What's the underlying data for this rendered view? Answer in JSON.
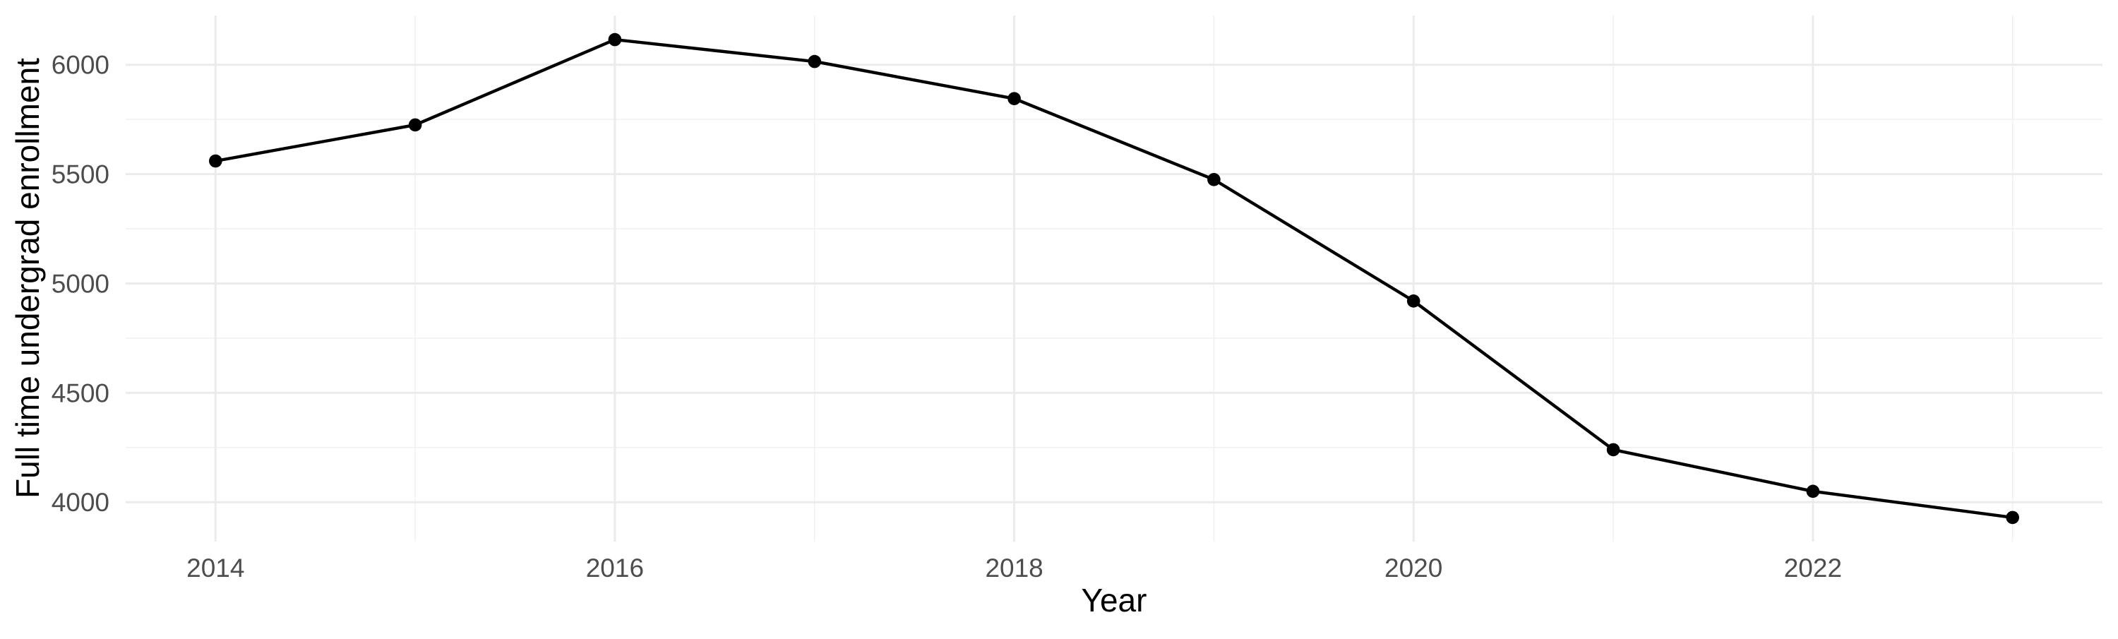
{
  "chart_data": {
    "type": "line",
    "title": "",
    "xlabel": "Year",
    "ylabel": "Full time undergrad enrollment",
    "series": [
      {
        "name": "Full time undergrad enrollment",
        "x": [
          2014,
          2015,
          2016,
          2017,
          2018,
          2019,
          2020,
          2021,
          2022,
          2023
        ],
        "y": [
          5560,
          5725,
          6115,
          6015,
          5845,
          5475,
          4920,
          4240,
          4050,
          3930
        ]
      }
    ],
    "xlim": [
      2013.55,
      2023.45
    ],
    "ylim": [
      3820,
      6225
    ],
    "x_major_ticks": [
      2014,
      2016,
      2018,
      2020,
      2022
    ],
    "x_tick_labels": [
      "2014",
      "2016",
      "2018",
      "2020",
      "2022"
    ],
    "x_minor_gridlines": [
      2015,
      2017,
      2019,
      2021,
      2023
    ],
    "y_major_ticks": [
      4000,
      4500,
      5000,
      5500,
      6000
    ],
    "y_tick_labels": [
      "4000",
      "4500",
      "5000",
      "5500",
      "6000"
    ],
    "y_minor_gridlines": [
      4250,
      4750,
      5250,
      5750
    ],
    "grid": "on",
    "legend": "none",
    "marker": "filled-circle",
    "colors": {
      "line": "#000000",
      "point": "#000000",
      "grid_major": "#ebebeb",
      "grid_minor": "#f0f0f0",
      "tick_label": "#4d4d4d",
      "axis_title": "#000000",
      "background": "#ffffff"
    }
  }
}
